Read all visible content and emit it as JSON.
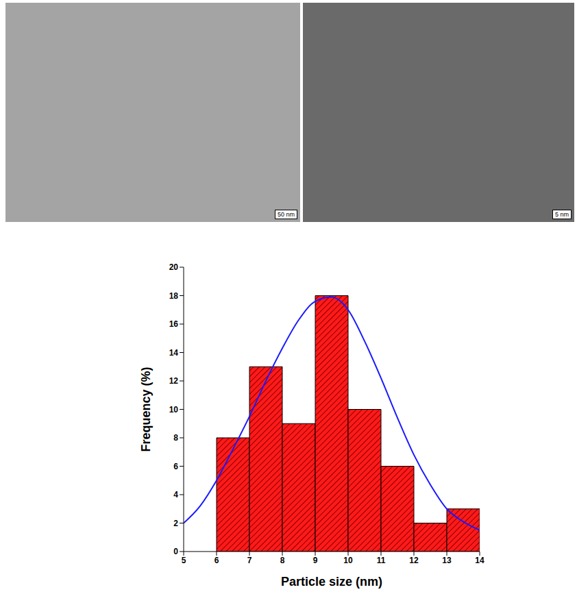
{
  "chart_data": {
    "type": "histogram",
    "xlabel": "Particle size (nm)",
    "ylabel": "Frequency (%)",
    "bins": [
      6,
      7,
      8,
      9,
      10,
      11,
      12,
      13,
      14
    ],
    "values": [
      8,
      13,
      9,
      18,
      10,
      6,
      2,
      3
    ],
    "color": "#ff1a1a",
    "xlim": [
      5,
      14
    ],
    "xticks": [
      5,
      6,
      7,
      8,
      9,
      10,
      11,
      12,
      13,
      14
    ],
    "ylim": [
      0,
      20
    ],
    "yticks": [
      0,
      2,
      4,
      6,
      8,
      10,
      12,
      14,
      16,
      18,
      20
    ],
    "fit": {
      "type": "line",
      "color": "#1a1aff",
      "x": [
        5,
        5.5,
        6,
        6.5,
        7,
        7.5,
        8,
        8.5,
        9,
        9.5,
        10,
        10.5,
        11,
        11.5,
        12,
        12.5,
        13,
        13.5,
        14
      ],
      "values": [
        2.0,
        3.2,
        5.0,
        7.2,
        9.5,
        12.0,
        14.3,
        16.3,
        17.6,
        17.9,
        17.0,
        14.8,
        12.2,
        9.4,
        6.8,
        4.7,
        3.0,
        2.1,
        1.5
      ]
    },
    "annotations": [
      "50 nm",
      "5 nm"
    ]
  }
}
